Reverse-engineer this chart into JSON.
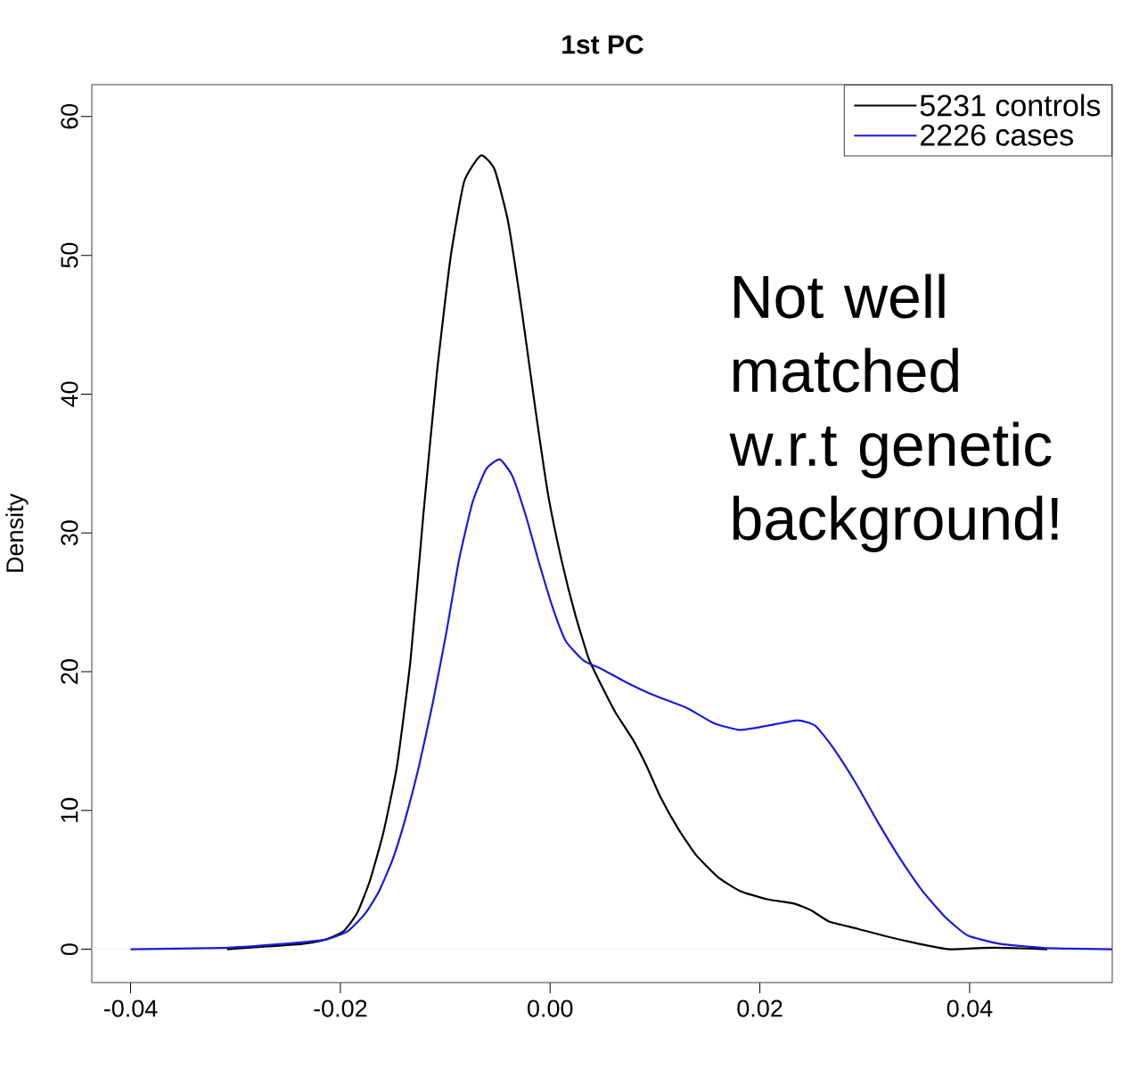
{
  "chart_data": {
    "type": "line",
    "title": "1st PC",
    "ylabel": "Density",
    "xlim": [
      -0.0437,
      0.0536
    ],
    "ylim": [
      -2.4,
      62.3
    ],
    "xticks": [
      {
        "value": -0.04,
        "label": "-0.04"
      },
      {
        "value": -0.02,
        "label": "-0.02"
      },
      {
        "value": 0,
        "label": "0.00"
      },
      {
        "value": 0.02,
        "label": "0.02"
      },
      {
        "value": 0.04,
        "label": "0.04"
      }
    ],
    "yticks": [
      0,
      10,
      20,
      30,
      40,
      50,
      60
    ],
    "legend": "top right",
    "grid": false,
    "marker": "none",
    "line_style": "solid",
    "ref_lines": [
      {
        "axis": "y",
        "value": 0,
        "color": "#eeeeee"
      }
    ],
    "annotations": [
      "Not well matched w.r.t genetic background!"
    ],
    "series": [
      {
        "name": "5231 controls",
        "color": "#000000",
        "x": [
          -0.0308,
          -0.027,
          -0.0235,
          -0.0214,
          -0.0197,
          -0.0184,
          -0.0172,
          -0.0159,
          -0.0146,
          -0.0133,
          -0.0121,
          -0.0108,
          -0.0095,
          -0.0082,
          -0.0066,
          -0.0053,
          -0.004,
          -0.0027,
          -0.0014,
          -0.0002,
          0.0011,
          0.0024,
          0.0037,
          0.0049,
          0.0062,
          0.0079,
          0.0092,
          0.0105,
          0.0122,
          0.0139,
          0.016,
          0.0181,
          0.0207,
          0.0232,
          0.0249,
          0.0266,
          0.0292,
          0.0317,
          0.0351,
          0.0381,
          0.0411,
          0.0436,
          0.0474
        ],
        "values": [
          0,
          0.2,
          0.4,
          0.7,
          1.3,
          2.6,
          4.9,
          8.4,
          13.2,
          20.9,
          31.2,
          41.5,
          49.8,
          55.3,
          57.2,
          56.2,
          52.4,
          46.0,
          38.9,
          32.8,
          28.0,
          24.1,
          20.9,
          19.0,
          17.1,
          15.1,
          13.2,
          11.0,
          8.7,
          6.8,
          5.2,
          4.2,
          3.6,
          3.3,
          2.8,
          2.0,
          1.5,
          1.0,
          0.4,
          0,
          0.1,
          0.1,
          0
        ]
      },
      {
        "name": "2226 cases",
        "color": "#1a1add",
        "x": [
          -0.04,
          -0.0312,
          -0.0252,
          -0.0214,
          -0.0193,
          -0.0176,
          -0.0163,
          -0.015,
          -0.0138,
          -0.0125,
          -0.0112,
          -0.0099,
          -0.0087,
          -0.0074,
          -0.0061,
          -0.0048,
          -0.0036,
          -0.0023,
          -0.001,
          0.0003,
          0.0015,
          0.0032,
          0.0049,
          0.0071,
          0.0096,
          0.013,
          0.0156,
          0.0181,
          0.0207,
          0.0236,
          0.0253,
          0.027,
          0.0292,
          0.0313,
          0.0334,
          0.0355,
          0.0377,
          0.0398,
          0.0428,
          0.047,
          0.0536
        ],
        "values": [
          0,
          0.1,
          0.4,
          0.7,
          1.3,
          2.6,
          4.2,
          6.5,
          9.4,
          13.2,
          17.7,
          22.8,
          28.0,
          32.2,
          34.6,
          35.3,
          34.1,
          31.2,
          27.7,
          24.5,
          22.2,
          20.8,
          20.2,
          19.3,
          18.4,
          17.4,
          16.3,
          15.8,
          16.1,
          16.5,
          16.1,
          14.5,
          11.9,
          9.1,
          6.5,
          4.2,
          2.3,
          1.0,
          0.4,
          0.1,
          0
        ]
      }
    ]
  }
}
